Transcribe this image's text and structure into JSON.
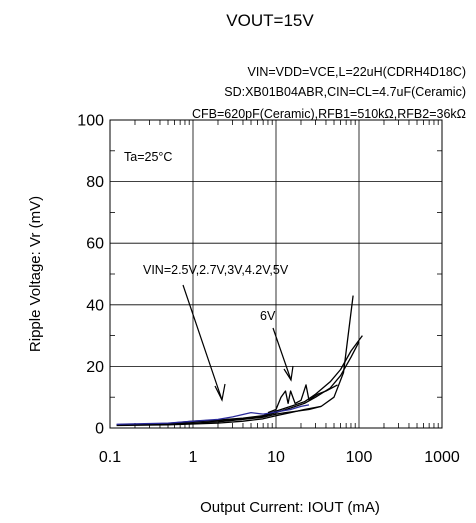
{
  "chart_data": {
    "type": "line",
    "title": "VOUT=15V",
    "conditions": [
      "VIN=VDD=VCE,L=22uH(CDRH4D18C)",
      "SD:XB01B04ABR,CIN=CL=4.7uF(Ceramic)",
      "CFB=620pF(Ceramic),RFB1=510kΩ,RFB2=36kΩ"
    ],
    "xlabel": "Output Current: IOUT (mA)",
    "ylabel": "Ripple Voltage: Vr (mV)",
    "x_scale": "log",
    "xlim": [
      0.1,
      1000
    ],
    "ylim": [
      0,
      100
    ],
    "x_ticks": [
      "0.1",
      "1",
      "10",
      "100",
      "1000"
    ],
    "x_tick_values": [
      0.1,
      1,
      10,
      100,
      1000
    ],
    "y_ticks": [
      "0",
      "20",
      "40",
      "60",
      "80",
      "100"
    ],
    "y_tick_values": [
      0,
      20,
      40,
      60,
      80,
      100
    ],
    "grid": true,
    "annotations": {
      "temperature": "Ta=25°C",
      "vin_group": "VIN=2.5V,2.7V,3V,4.2V,5V",
      "vin_6v": "6V"
    },
    "series": [
      {
        "color": "#000000",
        "x": [
          0.12,
          0.5,
          1,
          2,
          4,
          7,
          10,
          15,
          22,
          30,
          45,
          60,
          80,
          100
        ],
        "y": [
          1,
          1.4,
          2,
          2.4,
          3,
          3.8,
          5,
          6.5,
          8,
          10,
          13,
          17,
          23,
          28
        ]
      },
      {
        "color": "#000000",
        "x": [
          0.12,
          0.5,
          1,
          2,
          4,
          7,
          10,
          15,
          22,
          30,
          45,
          60,
          80,
          110
        ],
        "y": [
          1,
          1.5,
          2.2,
          2.6,
          3.2,
          4,
          5.5,
          7,
          8.5,
          11,
          15,
          19,
          25,
          30
        ]
      },
      {
        "color": "#000000",
        "x": [
          0.12,
          0.5,
          1,
          2,
          4,
          7,
          10,
          13,
          18,
          25,
          35,
          50,
          65,
          85
        ],
        "y": [
          1,
          1.2,
          1.6,
          2,
          2.8,
          3.5,
          4.5,
          5,
          5.5,
          6,
          7,
          10,
          18,
          43
        ]
      },
      {
        "color": "#000000",
        "x": [
          0.12,
          0.5,
          1,
          2,
          4,
          7,
          10,
          15,
          22,
          35
        ],
        "y": [
          0.8,
          1,
          1.3,
          1.6,
          2.2,
          3,
          4,
          5,
          6,
          7
        ]
      },
      {
        "color": "#2a2a9a",
        "x": [
          0.12,
          0.5,
          1,
          2,
          3,
          5,
          7,
          10,
          15,
          20,
          25
        ],
        "y": [
          1.2,
          1.6,
          2.2,
          2.8,
          3.6,
          5,
          4.5,
          5.2,
          6,
          7,
          7.5
        ]
      },
      {
        "color": "#000000",
        "x": [
          8,
          10,
          11.5,
          13,
          14,
          15,
          17,
          20,
          23,
          25,
          28,
          32,
          40,
          55
        ],
        "y": [
          5,
          6,
          10,
          12,
          8,
          12,
          8,
          9,
          14,
          9,
          10,
          11,
          12,
          14
        ]
      }
    ]
  }
}
